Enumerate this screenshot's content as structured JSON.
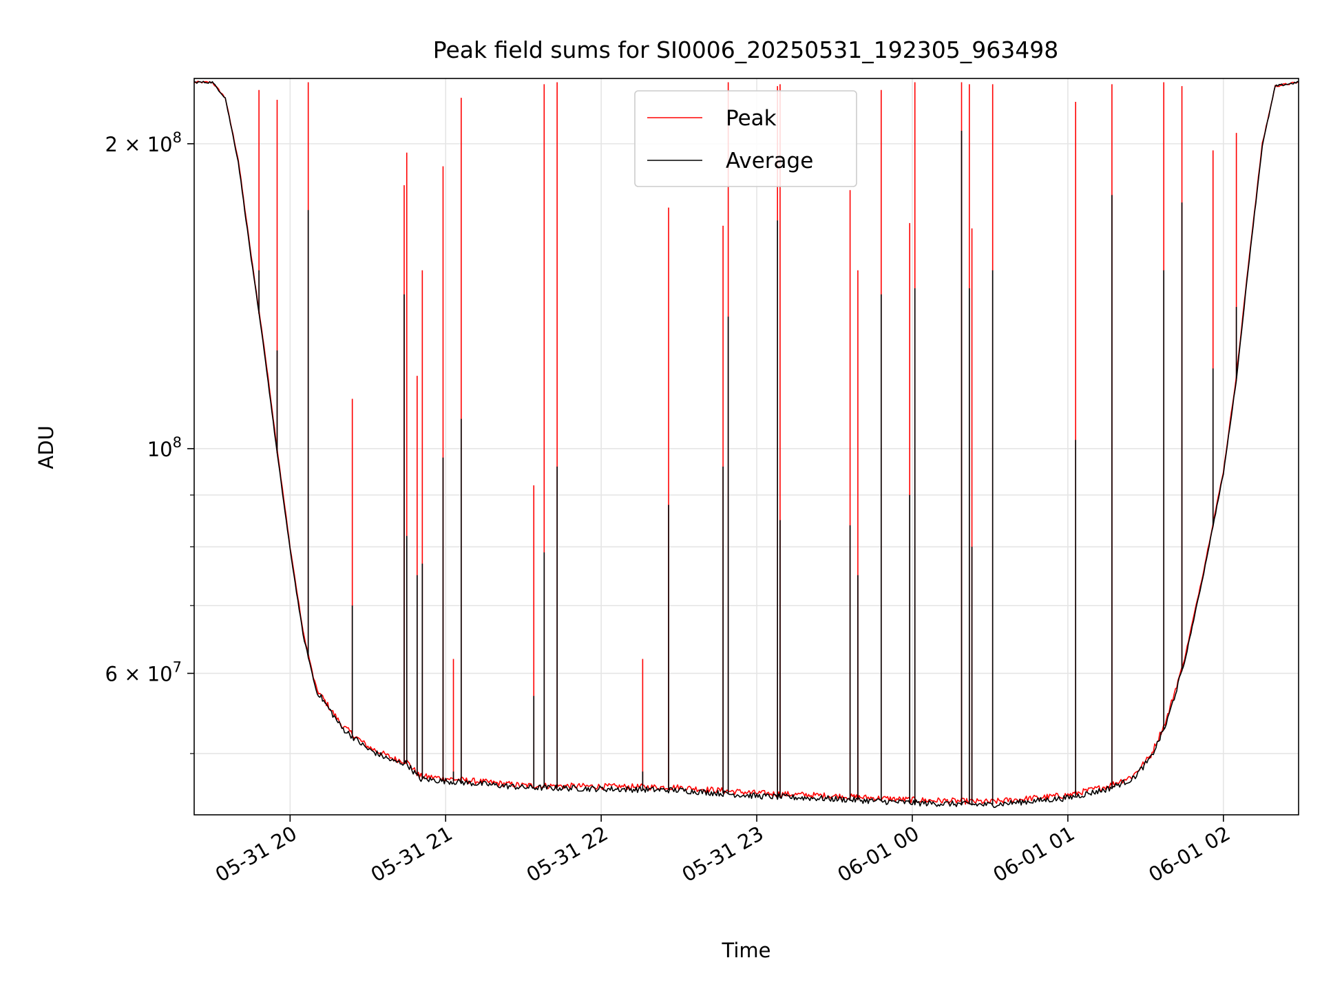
{
  "chart_data": {
    "type": "line",
    "title": "Peak field sums for SI0006_20250531_192305_963498",
    "xlabel": "Time",
    "ylabel": "ADU",
    "yscale": "log",
    "grid": true,
    "legend_position": "upper center",
    "xlim": [
      "2025-05-31 19:23",
      "2025-06-01 02:29"
    ],
    "ylim": [
      43500000,
      232000000
    ],
    "x_ticks": [
      {
        "t": "2025-05-31 20:00",
        "label": "05-31 20"
      },
      {
        "t": "2025-05-31 21:00",
        "label": "05-31 21"
      },
      {
        "t": "2025-05-31 22:00",
        "label": "05-31 22"
      },
      {
        "t": "2025-05-31 23:00",
        "label": "05-31 23"
      },
      {
        "t": "2025-06-01 00:00",
        "label": "06-01 00"
      },
      {
        "t": "2025-06-01 01:00",
        "label": "06-01 01"
      },
      {
        "t": "2025-06-01 02:00",
        "label": "06-01 02"
      }
    ],
    "y_major_ticks": [
      {
        "v": 200000000,
        "base": "2 × 10",
        "exp": "8"
      },
      {
        "v": 100000000,
        "base": "10",
        "exp": "8"
      },
      {
        "v": 60000000,
        "base": "6 × 10",
        "exp": "7"
      }
    ],
    "y_minor_ticks": [
      50000000,
      70000000,
      80000000,
      90000000
    ],
    "series": [
      {
        "name": "Peak",
        "color": "#ff0000",
        "points": [
          [
            "2025-05-31 19:23",
            230000000
          ],
          [
            "2025-05-31 19:30",
            230000000
          ],
          [
            "2025-05-31 19:35",
            222000000
          ],
          [
            "2025-05-31 19:40",
            193000000
          ],
          [
            "2025-05-31 19:45",
            155000000
          ],
          [
            "2025-05-31 19:50",
            126000000
          ],
          [
            "2025-05-31 19:55",
            100000000
          ],
          [
            "2025-05-31 20:00",
            80000000
          ],
          [
            "2025-05-31 20:05",
            66000000
          ],
          [
            "2025-05-31 20:10",
            58000000
          ],
          [
            "2025-05-31 20:20",
            53300000
          ],
          [
            "2025-05-31 20:30",
            50800000
          ],
          [
            "2025-05-31 20:40",
            49400000
          ],
          [
            "2025-05-31 20:45",
            49100000
          ],
          [
            "2025-05-31 20:50",
            47500000
          ],
          [
            "2025-05-31 21:30",
            46500000
          ],
          [
            "2025-05-31 22:30",
            46300000
          ],
          [
            "2025-05-31 23:00",
            45700000
          ],
          [
            "2025-05-31 23:30",
            45400000
          ],
          [
            "2025-06-01 00:00",
            45000000
          ],
          [
            "2025-06-01 00:30",
            44800000
          ],
          [
            "2025-06-01 01:00",
            45500000
          ],
          [
            "2025-06-01 01:15",
            46400000
          ],
          [
            "2025-06-01 01:25",
            47500000
          ],
          [
            "2025-06-01 01:32",
            49800000
          ],
          [
            "2025-06-01 01:38",
            54000000
          ],
          [
            "2025-06-01 01:45",
            62000000
          ],
          [
            "2025-06-01 01:52",
            75000000
          ],
          [
            "2025-06-01 02:00",
            95000000
          ],
          [
            "2025-06-01 02:05",
            118000000
          ],
          [
            "2025-06-01 02:10",
            155000000
          ],
          [
            "2025-06-01 02:15",
            200000000
          ],
          [
            "2025-06-01 02:20",
            228000000
          ],
          [
            "2025-06-01 02:29",
            230000000
          ]
        ]
      },
      {
        "name": "Average",
        "color": "#000000",
        "points": [
          [
            "2025-05-31 19:23",
            230000000
          ],
          [
            "2025-05-31 19:30",
            230000000
          ],
          [
            "2025-05-31 19:35",
            222000000
          ],
          [
            "2025-05-31 19:40",
            192000000
          ],
          [
            "2025-05-31 19:45",
            154000000
          ],
          [
            "2025-05-31 19:50",
            125000000
          ],
          [
            "2025-05-31 19:55",
            99000000
          ],
          [
            "2025-05-31 20:00",
            79500000
          ],
          [
            "2025-05-31 20:05",
            65500000
          ],
          [
            "2025-05-31 20:10",
            57800000
          ],
          [
            "2025-05-31 20:20",
            53000000
          ],
          [
            "2025-05-31 20:30",
            50500000
          ],
          [
            "2025-05-31 20:40",
            49100000
          ],
          [
            "2025-05-31 20:45",
            48900000
          ],
          [
            "2025-05-31 20:50",
            47200000
          ],
          [
            "2025-05-31 21:30",
            46300000
          ],
          [
            "2025-05-31 22:30",
            46000000
          ],
          [
            "2025-05-31 23:00",
            45400000
          ],
          [
            "2025-05-31 23:30",
            45100000
          ],
          [
            "2025-06-01 00:00",
            44700000
          ],
          [
            "2025-06-01 00:30",
            44500000
          ],
          [
            "2025-06-01 01:00",
            45200000
          ],
          [
            "2025-06-01 01:15",
            46100000
          ],
          [
            "2025-06-01 01:25",
            47200000
          ],
          [
            "2025-06-01 01:32",
            49500000
          ],
          [
            "2025-06-01 01:38",
            53500000
          ],
          [
            "2025-06-01 01:45",
            61500000
          ],
          [
            "2025-06-01 01:52",
            74500000
          ],
          [
            "2025-06-01 02:00",
            94500000
          ],
          [
            "2025-06-01 02:05",
            117000000
          ],
          [
            "2025-06-01 02:10",
            154000000
          ],
          [
            "2025-06-01 02:15",
            199000000
          ],
          [
            "2025-06-01 02:20",
            228000000
          ],
          [
            "2025-06-01 02:29",
            230000000
          ]
        ]
      }
    ],
    "spikes": [
      {
        "t": "2025-05-31 19:48",
        "peak": 226000000,
        "avg": 150000000
      },
      {
        "t": "2025-05-31 19:55",
        "peak": 221000000,
        "avg": 125000000
      },
      {
        "t": "2025-05-31 20:07",
        "peak": 230000000,
        "avg": 172000000
      },
      {
        "t": "2025-05-31 20:24",
        "peak": 112000000,
        "avg": 70000000
      },
      {
        "t": "2025-05-31 20:44",
        "peak": 182000000,
        "avg": 142000000
      },
      {
        "t": "2025-05-31 20:45",
        "peak": 196000000,
        "avg": 82000000
      },
      {
        "t": "2025-05-31 20:49",
        "peak": 118000000,
        "avg": 75000000
      },
      {
        "t": "2025-05-31 20:51",
        "peak": 150000000,
        "avg": 77000000
      },
      {
        "t": "2025-05-31 20:59",
        "peak": 190000000,
        "avg": 98000000
      },
      {
        "t": "2025-05-31 21:03",
        "peak": 62000000,
        "avg": 48000000
      },
      {
        "t": "2025-05-31 21:06",
        "peak": 222000000,
        "avg": 107000000
      },
      {
        "t": "2025-05-31 21:34",
        "peak": 92000000,
        "avg": 57000000
      },
      {
        "t": "2025-05-31 21:38",
        "peak": 229000000,
        "avg": 79000000
      },
      {
        "t": "2025-05-31 21:43",
        "peak": 230000000,
        "avg": 96000000
      },
      {
        "t": "2025-05-31 22:16",
        "peak": 62000000,
        "avg": 48000000
      },
      {
        "t": "2025-05-31 22:26",
        "peak": 173000000,
        "avg": 88000000
      },
      {
        "t": "2025-05-31 22:47",
        "peak": 166000000,
        "avg": 96000000
      },
      {
        "t": "2025-05-31 22:49",
        "peak": 230000000,
        "avg": 135000000
      },
      {
        "t": "2025-05-31 23:08",
        "peak": 228000000,
        "avg": 168000000
      },
      {
        "t": "2025-05-31 23:09",
        "peak": 229000000,
        "avg": 85000000
      },
      {
        "t": "2025-05-31 23:36",
        "peak": 180000000,
        "avg": 84000000
      },
      {
        "t": "2025-05-31 23:39",
        "peak": 150000000,
        "avg": 75000000
      },
      {
        "t": "2025-05-31 23:48",
        "peak": 226000000,
        "avg": 142000000
      },
      {
        "t": "2025-05-31 23:59",
        "peak": 167000000,
        "avg": 90000000
      },
      {
        "t": "2025-06-01 00:01",
        "peak": 230000000,
        "avg": 144000000
      },
      {
        "t": "2025-06-01 00:19",
        "peak": 230000000,
        "avg": 206000000
      },
      {
        "t": "2025-06-01 00:22",
        "peak": 229000000,
        "avg": 144000000
      },
      {
        "t": "2025-06-01 00:23",
        "peak": 165000000,
        "avg": 80000000
      },
      {
        "t": "2025-06-01 00:31",
        "peak": 229000000,
        "avg": 150000000
      },
      {
        "t": "2025-06-01 01:03",
        "peak": 220000000,
        "avg": 102000000
      },
      {
        "t": "2025-06-01 01:17",
        "peak": 229000000,
        "avg": 178000000
      },
      {
        "t": "2025-06-01 01:37",
        "peak": 230000000,
        "avg": 150000000
      },
      {
        "t": "2025-06-01 01:44",
        "peak": 228000000,
        "avg": 175000000
      },
      {
        "t": "2025-06-01 01:56",
        "peak": 197000000,
        "avg": 120000000
      },
      {
        "t": "2025-06-01 02:05",
        "peak": 205000000,
        "avg": 138000000
      }
    ]
  }
}
